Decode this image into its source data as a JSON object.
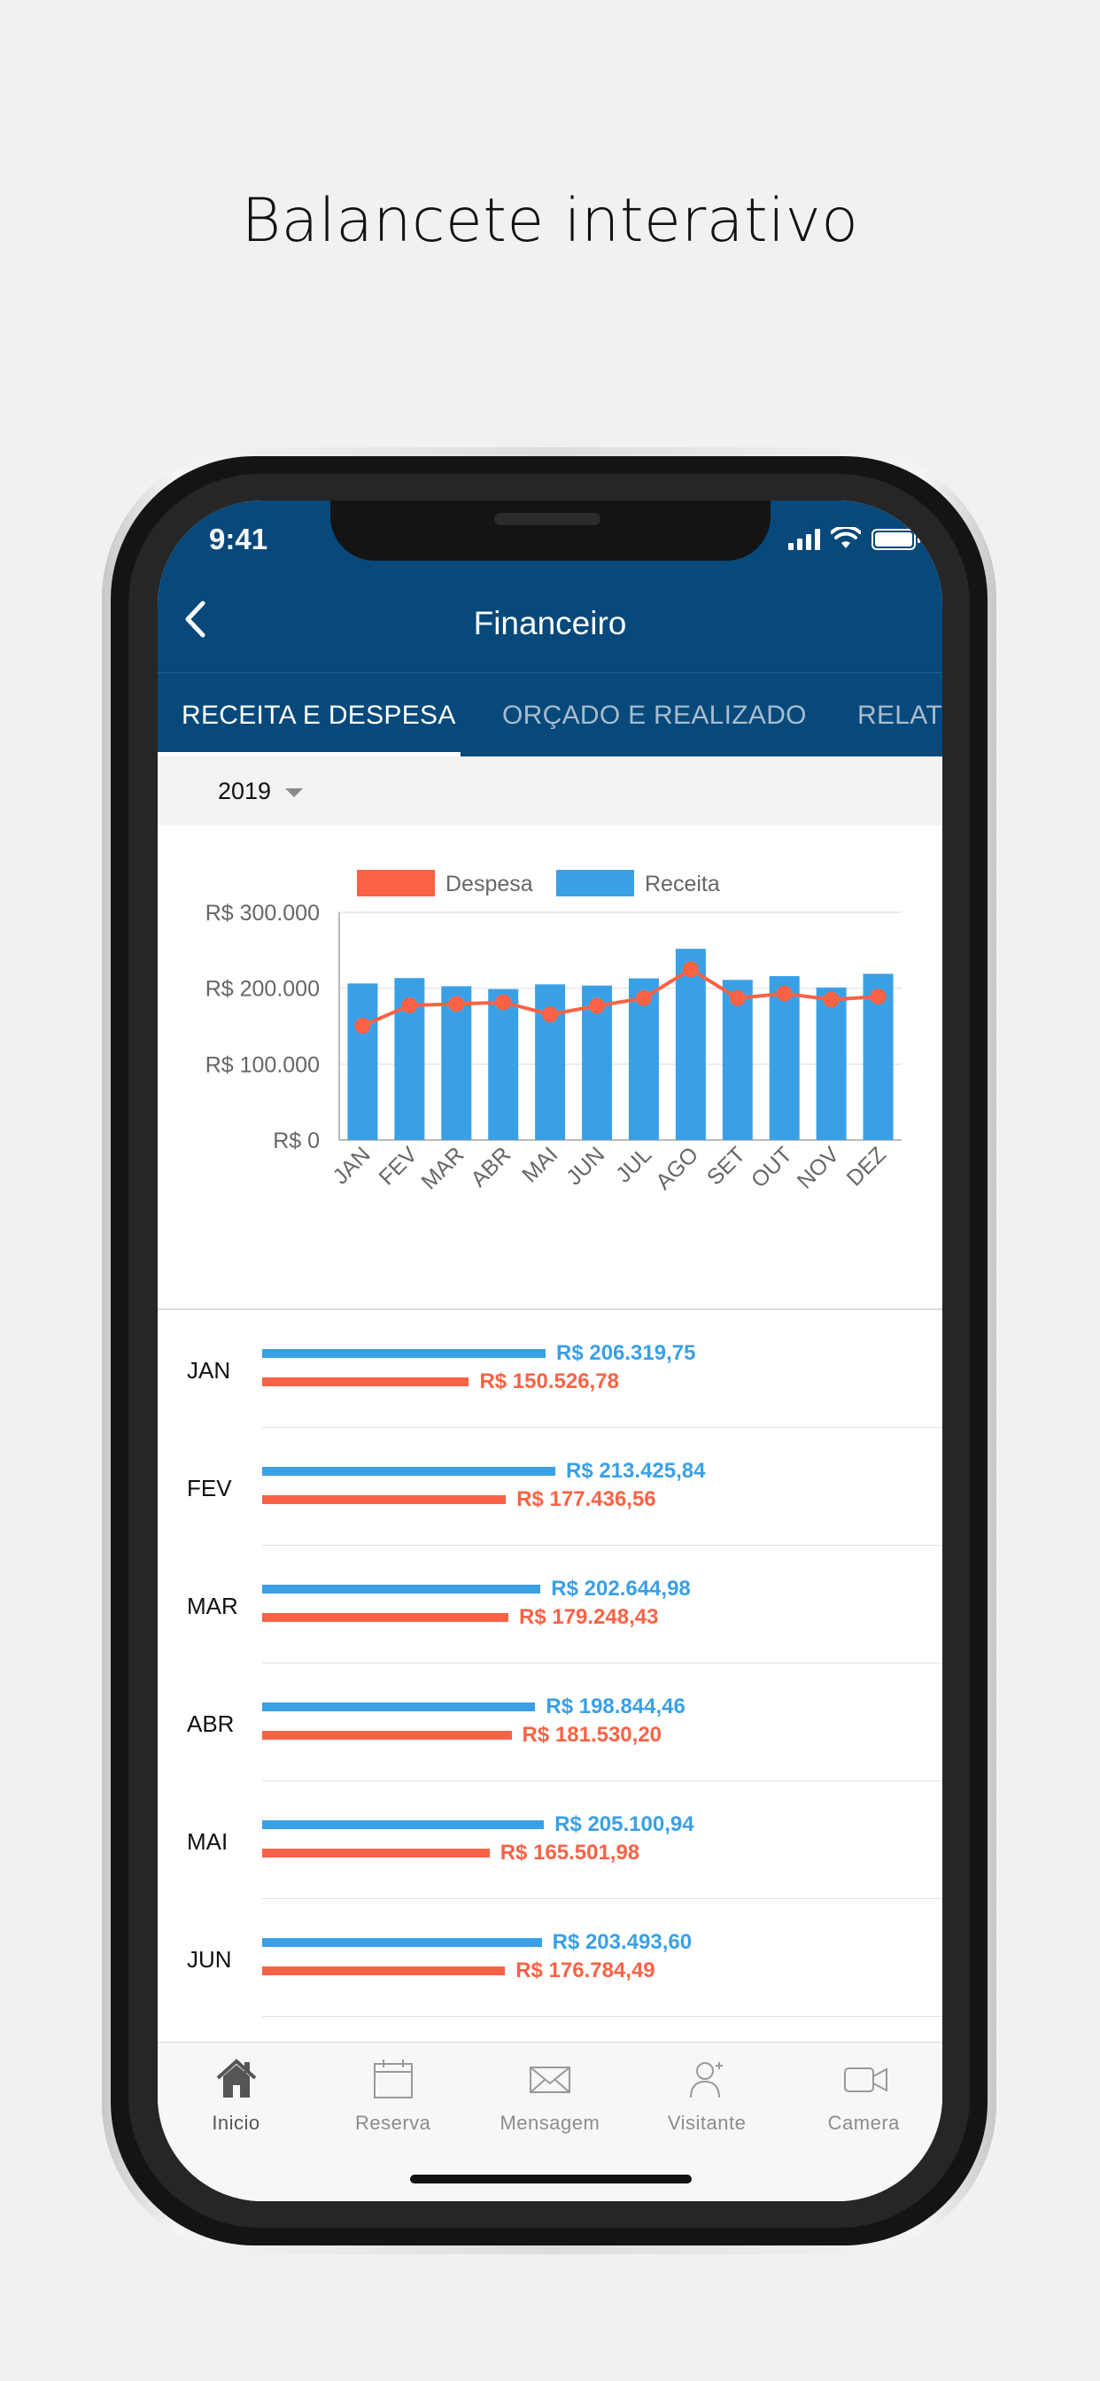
{
  "headline": "Balancete interativo",
  "status_bar": {
    "time": "9:41"
  },
  "header": {
    "title": "Financeiro"
  },
  "tabs": [
    {
      "label": "RECEITA E DESPESA"
    },
    {
      "label": "ORÇADO E REALIZADO"
    },
    {
      "label": "RELATÓRIOS"
    }
  ],
  "filter": {
    "year": "2019"
  },
  "colors": {
    "primary": "#07497a",
    "receita": "#3aa0e6",
    "despesa": "#fa6245"
  },
  "chart_data": {
    "type": "bar",
    "categories": [
      "JAN",
      "FEV",
      "MAR",
      "ABR",
      "MAI",
      "JUN",
      "JUL",
      "AGO",
      "SET",
      "OUT",
      "NOV",
      "DEZ"
    ],
    "series": [
      {
        "name": "Receita",
        "type": "bar",
        "values": [
          206320,
          213426,
          202645,
          198844,
          205101,
          203494,
          213000,
          252000,
          211000,
          216000,
          201000,
          219000
        ]
      },
      {
        "name": "Despesa",
        "type": "line",
        "values": [
          150527,
          177437,
          179248,
          181530,
          165502,
          176784,
          187000,
          225000,
          187000,
          193000,
          185000,
          189000
        ]
      }
    ],
    "y_ticks": [
      "R$ 0",
      "R$ 100.000",
      "R$ 200.000",
      "R$ 300.000"
    ],
    "ylim": [
      0,
      300000
    ],
    "legend": [
      "Despesa",
      "Receita"
    ],
    "legend_position": "top",
    "grid": true
  },
  "rows": [
    {
      "month": "JAN",
      "receita": 206319.75,
      "despesa": 150526.78,
      "receita_label": "R$ 206.319,75",
      "despesa_label": "R$ 150.526,78"
    },
    {
      "month": "FEV",
      "receita": 213425.84,
      "despesa": 177436.56,
      "receita_label": "R$ 213.425,84",
      "despesa_label": "R$ 177.436,56"
    },
    {
      "month": "MAR",
      "receita": 202644.98,
      "despesa": 179248.43,
      "receita_label": "R$ 202.644,98",
      "despesa_label": "R$ 179.248,43"
    },
    {
      "month": "ABR",
      "receita": 198844.46,
      "despesa": 181530.2,
      "receita_label": "R$ 198.844,46",
      "despesa_label": "R$ 181.530,20"
    },
    {
      "month": "MAI",
      "receita": 205100.94,
      "despesa": 165501.98,
      "receita_label": "R$ 205.100,94",
      "despesa_label": "R$ 165.501,98"
    },
    {
      "month": "JUN",
      "receita": 203493.6,
      "despesa": 176784.49,
      "receita_label": "R$ 203.493,60",
      "despesa_label": "R$ 176.784,49"
    }
  ],
  "tabbar": [
    {
      "label": "Inicio",
      "icon": "home-icon",
      "active": true
    },
    {
      "label": "Reserva",
      "icon": "calendar-icon",
      "active": false
    },
    {
      "label": "Mensagem",
      "icon": "envelope-icon",
      "active": false
    },
    {
      "label": "Visitante",
      "icon": "add-person-icon",
      "active": false
    },
    {
      "label": "Camera",
      "icon": "video-camera-icon",
      "active": false
    }
  ]
}
